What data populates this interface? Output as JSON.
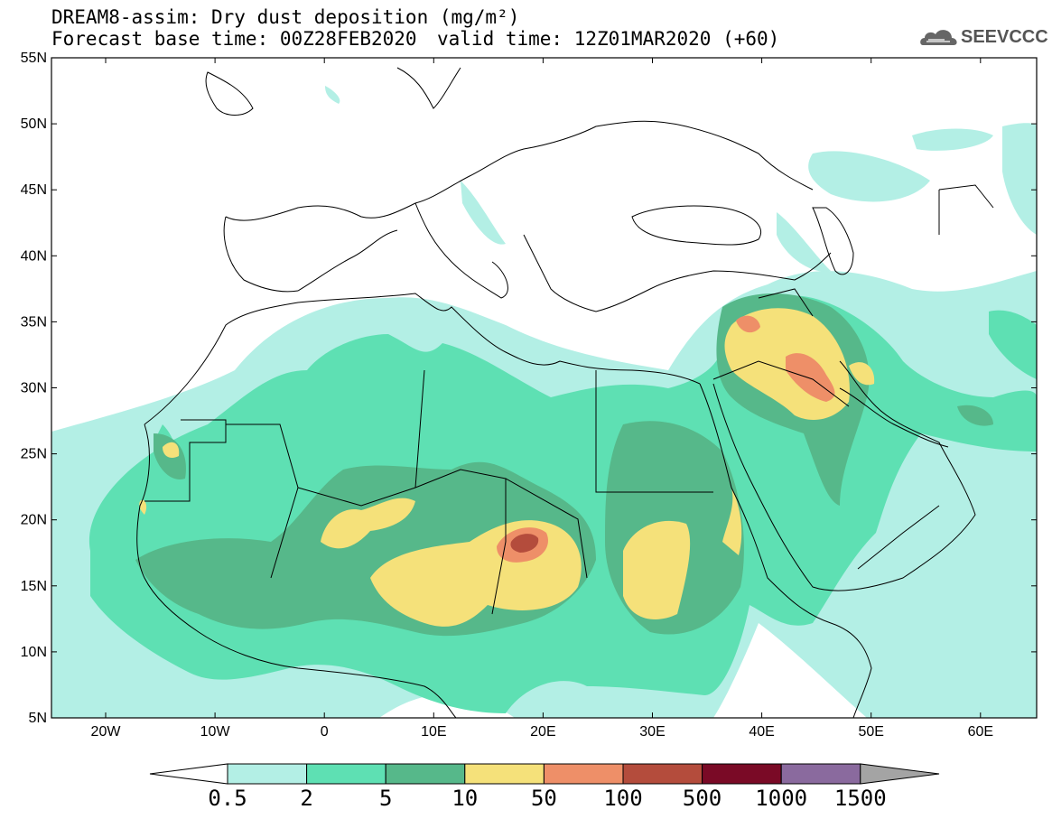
{
  "title": {
    "line1": "DREAM8-assim: Dry dust deposition (mg/m²)",
    "line2": "Forecast base time: 00Z28FEB2020",
    "valid": "valid time: 12Z01MAR2020 (+60)"
  },
  "logo": {
    "text": "SEEVCCC",
    "icon": "cloud-icon"
  },
  "axes": {
    "lat_labels": [
      "55N",
      "50N",
      "45N",
      "40N",
      "35N",
      "30N",
      "25N",
      "20N",
      "15N",
      "10N",
      "5N"
    ],
    "lon_labels": [
      "20W",
      "10W",
      "0",
      "10E",
      "20E",
      "30E",
      "40E",
      "50E",
      "60E"
    ]
  },
  "colorbar": {
    "labels": [
      "0.5",
      "2",
      "5",
      "10",
      "50",
      "100",
      "500",
      "1000",
      "1500"
    ],
    "colors": [
      "#b3efe5",
      "#5ee0b3",
      "#56b88a",
      "#f5e17a",
      "#ee8f68",
      "#b44c3c",
      "#7a0a26",
      "#8a6a9e",
      "#a4a4a4"
    ]
  },
  "colors": {
    "level1": "#b3efe5",
    "level2": "#5ee0b3",
    "level3": "#56b88a",
    "level4": "#f5e17a",
    "level5": "#ee8f68",
    "level6": "#b44c3c"
  }
}
